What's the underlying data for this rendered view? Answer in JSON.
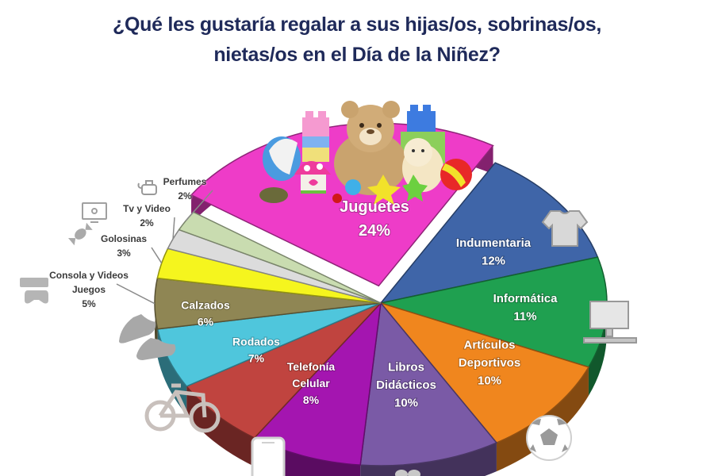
{
  "title": {
    "line1": "¿Qué les gustaría regalar a sus hijas/os, sobrinas/os,",
    "line2": "nietas/os en el Día de la Niñez?"
  },
  "chart_data": {
    "type": "pie",
    "title": "¿Qué les gustaría regalar a sus hijas/os, sobrinas/os, nietas/os en el Día de la Niñez?",
    "categories": [
      "Juguetes",
      "Indumentaria",
      "Informática",
      "Artículos Deportivos",
      "Libros Didácticos",
      "Telefonía Celular",
      "Rodados",
      "Calzados",
      "Consola y Videos Juegos",
      "Golosinas",
      "Tv y Video",
      "Perfumes"
    ],
    "values": [
      24,
      12,
      11,
      10,
      10,
      8,
      7,
      6,
      5,
      3,
      2,
      2
    ],
    "unit": "%",
    "colors": [
      "#ee3cc8",
      "#3f65a8",
      "#1fa050",
      "#f0861e",
      "#7a5aa6",
      "#a415b0",
      "#c0443f",
      "#4fc6dc",
      "#8f8654",
      "#f5f51e",
      "#dcdcdc",
      "#c9dcb0"
    ],
    "exploded": [
      "Juguetes"
    ],
    "style": "3d"
  },
  "slices": [
    {
      "label": "Juguetes",
      "pct": "24%",
      "icon": "toys-icon"
    },
    {
      "label": "Indumentaria",
      "pct": "12%",
      "icon": "tshirt-icon"
    },
    {
      "label": "Informática",
      "pct": "11%",
      "icon": "computer-icon"
    },
    {
      "label": "Artículos\nDeportivos",
      "pct": "10%",
      "icon": "soccer-ball-icon"
    },
    {
      "label": "Libros\nDidácticos",
      "pct": "10%",
      "icon": "books-icon"
    },
    {
      "label": "Telefonía\nCelular",
      "pct": "8%",
      "icon": "smartphone-icon"
    },
    {
      "label": "Rodados",
      "pct": "7%",
      "icon": "bicycle-icon"
    },
    {
      "label": "Calzados",
      "pct": "6%",
      "icon": "sneakers-icon"
    },
    {
      "label": "Consola y Videos\nJuegos",
      "pct": "5%",
      "icon": "game-controller-icon"
    },
    {
      "label": "Golosinas",
      "pct": "3%",
      "icon": "candy-icon"
    },
    {
      "label": "Tv y Video",
      "pct": "2%",
      "icon": "tv-icon"
    },
    {
      "label": "Perfumes",
      "pct": "2%",
      "icon": "perfume-icon"
    }
  ]
}
